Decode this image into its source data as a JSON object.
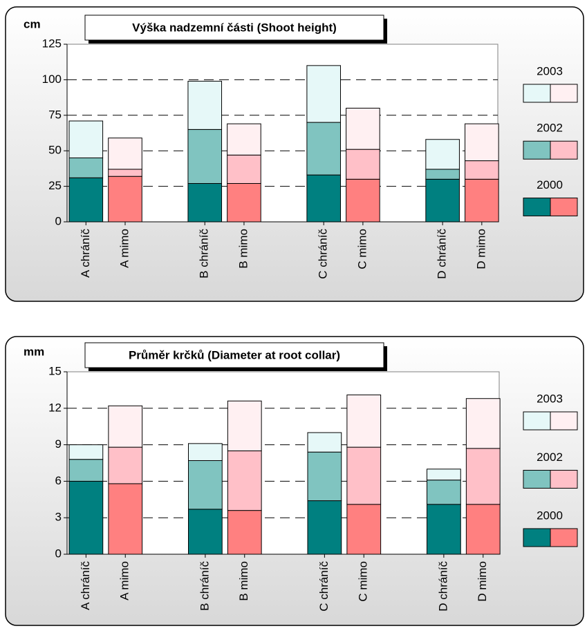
{
  "chart_data": [
    {
      "type": "bar",
      "stacked": true,
      "title": "Výška nadzemní části (Shoot height)",
      "y_label": "cm",
      "categories": [
        "A chráníč",
        "A mimo",
        "B chráníč",
        "B mimo",
        "C chráníč",
        "C mimo",
        "D chráníč",
        "D mimo"
      ],
      "series": [
        {
          "name": "2000",
          "colors": [
            "#008080",
            "#ff8080"
          ],
          "values": [
            31,
            32,
            27,
            27,
            33,
            30,
            30,
            30
          ]
        },
        {
          "name": "2002",
          "colors": [
            "#80c4c0",
            "#ffc0c8"
          ],
          "values": [
            14,
            5,
            38,
            20,
            37,
            21,
            7,
            13
          ]
        },
        {
          "name": "2003",
          "colors": [
            "#e6f8f8",
            "#fff0f2"
          ],
          "values": [
            26,
            22,
            34,
            22,
            40,
            29,
            21,
            26
          ]
        }
      ],
      "ylim": [
        0,
        125
      ],
      "yticks": [
        0,
        25,
        50,
        75,
        100,
        125
      ],
      "grid": true,
      "legend": "right"
    },
    {
      "type": "bar",
      "stacked": true,
      "title": "Průměr krčků (Diameter at root collar)",
      "y_label": "mm",
      "categories": [
        "A chráníč",
        "A mimo",
        "B chráníč",
        "B mimo",
        "C chráníč",
        "C mimo",
        "D chráníč",
        "D mimo"
      ],
      "series": [
        {
          "name": "2000",
          "colors": [
            "#008080",
            "#ff8080"
          ],
          "values": [
            6.0,
            5.8,
            3.7,
            3.6,
            4.4,
            4.1,
            4.1,
            4.1
          ]
        },
        {
          "name": "2002",
          "colors": [
            "#80c4c0",
            "#ffc0c8"
          ],
          "values": [
            1.8,
            3.0,
            4.0,
            4.9,
            4.0,
            4.7,
            2.0,
            4.6
          ]
        },
        {
          "name": "2003",
          "colors": [
            "#e6f8f8",
            "#fff0f2"
          ],
          "values": [
            1.2,
            3.4,
            1.4,
            4.1,
            1.6,
            4.3,
            0.9,
            4.1
          ]
        }
      ],
      "ylim": [
        0,
        15
      ],
      "yticks": [
        0,
        3,
        6,
        9,
        12,
        15
      ],
      "grid": true,
      "legend": "right"
    }
  ]
}
